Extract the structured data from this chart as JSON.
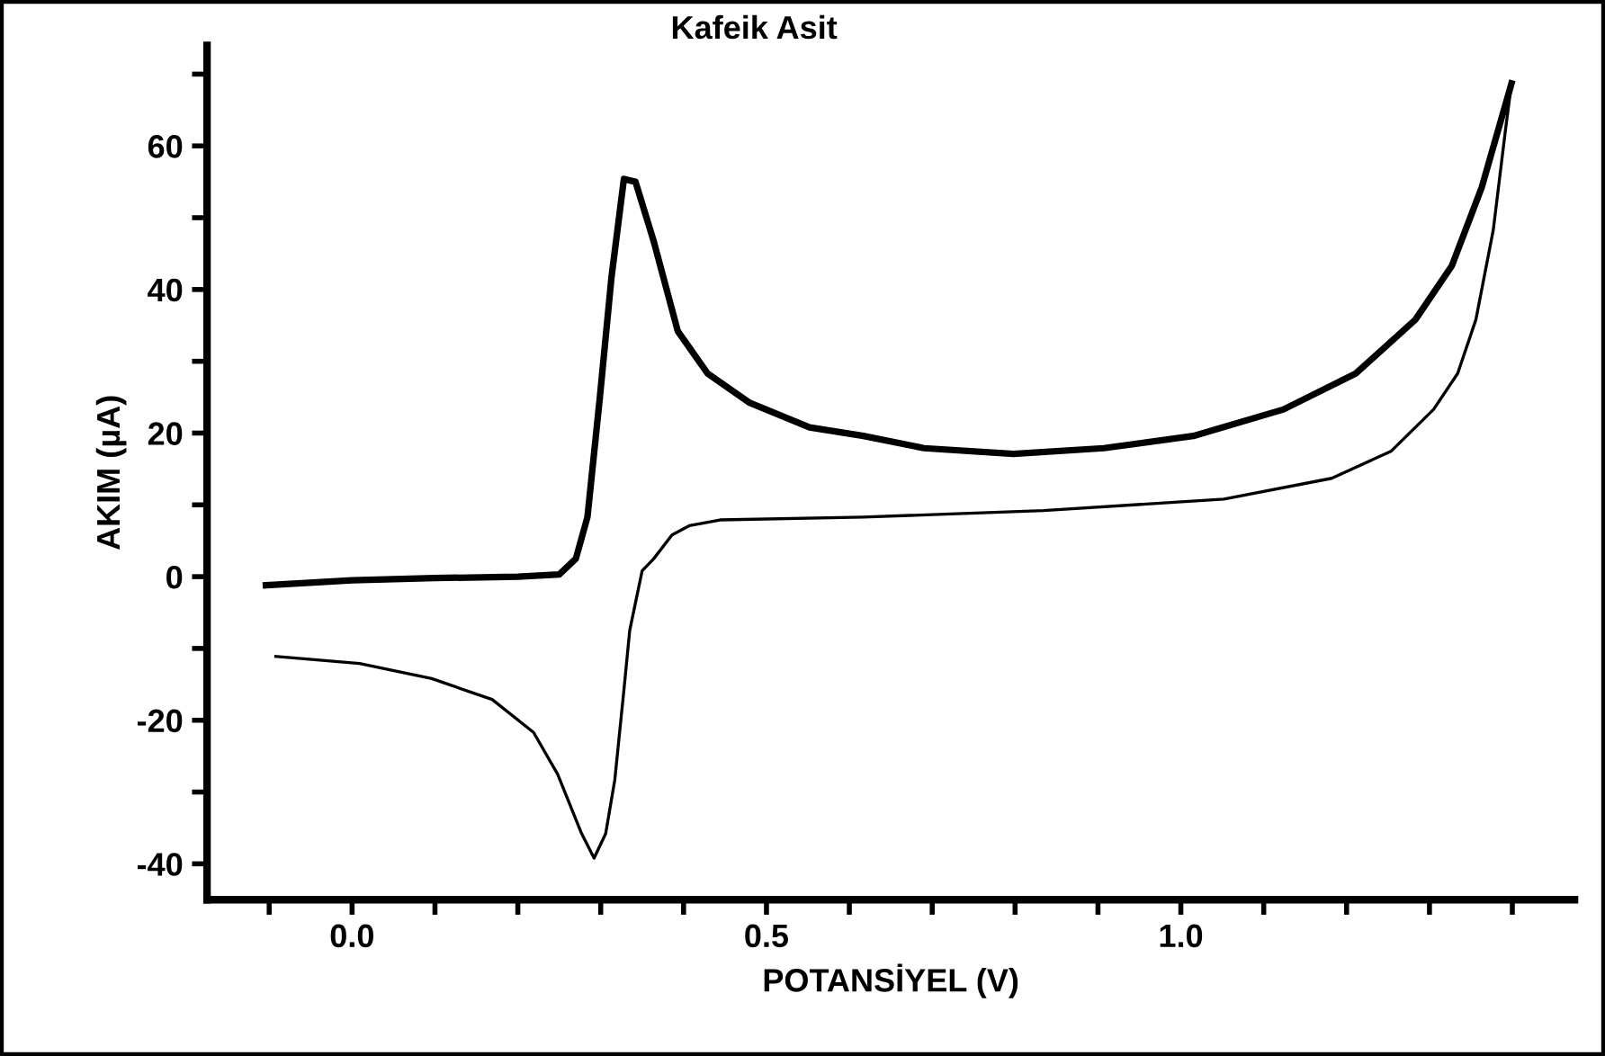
{
  "chart_data": {
    "type": "line",
    "title": "Kafeik Asit",
    "xlabel": "POTANSİYEL (V)",
    "ylabel": "AKIM (µA)",
    "xlim": [
      -0.175,
      1.475
    ],
    "ylim": [
      -45,
      74
    ],
    "xticks": [
      {
        "value": -0.1,
        "label": null
      },
      {
        "value": 0.0,
        "label": "0.0"
      },
      {
        "value": 0.1,
        "label": null
      },
      {
        "value": 0.2,
        "label": null
      },
      {
        "value": 0.3,
        "label": null
      },
      {
        "value": 0.4,
        "label": null
      },
      0.5,
      {
        "value": 0.6,
        "label": null
      },
      {
        "value": 0.7,
        "label": null
      },
      {
        "value": 0.8,
        "label": null
      },
      {
        "value": 0.9,
        "label": null
      },
      {
        "value": 1.0,
        "label": "1.0"
      },
      {
        "value": 1.1,
        "label": null
      },
      {
        "value": 1.2,
        "label": null
      },
      {
        "value": 1.3,
        "label": null
      },
      {
        "value": 1.4,
        "label": null
      }
    ],
    "yticks": [
      -40,
      {
        "value": -30,
        "label": null
      },
      -20,
      {
        "value": -10,
        "label": null
      },
      0,
      {
        "value": 10,
        "label": null
      },
      20,
      {
        "value": 30,
        "label": null
      },
      40,
      {
        "value": 50,
        "label": null
      },
      60,
      {
        "value": 70,
        "label": null
      }
    ],
    "grid": false,
    "legend": false,
    "marker": "none",
    "line_style": "solid",
    "series": [
      {
        "color": "#000000",
        "x": [
          -0.104,
          0.0,
          0.1,
          0.2,
          0.25,
          0.27,
          0.284,
          0.299,
          0.313,
          0.328,
          0.342,
          0.364,
          0.393,
          0.429,
          0.48,
          0.552,
          0.617,
          0.69,
          0.798,
          0.907,
          1.015,
          1.124,
          1.211,
          1.283,
          1.327,
          1.363,
          1.399
        ],
        "values": [
          -1.2,
          -0.5,
          -0.2,
          0.0,
          0.3,
          2.5,
          8.3,
          25,
          41.7,
          55.4,
          55,
          46.7,
          34.2,
          28.3,
          24.2,
          20.8,
          19.6,
          17.9,
          17.1,
          17.9,
          19.6,
          23.3,
          28.3,
          35.8,
          43.3,
          54.2,
          68.7
        ]
      },
      {
        "color": "#000000",
        "x": [
          1.399,
          1.392,
          1.377,
          1.356,
          1.334,
          1.305,
          1.254,
          1.182,
          1.052,
          0.834,
          0.617,
          0.444,
          0.407,
          0.386,
          0.364,
          0.35,
          0.335,
          0.328,
          0.317,
          0.306,
          0.292,
          0.277,
          0.248,
          0.219,
          0.169,
          0.096,
          0.009,
          -0.092
        ],
        "values": [
          68.7,
          62.5,
          48.3,
          35.8,
          28.3,
          23.3,
          17.5,
          13.7,
          10.8,
          9.2,
          8.3,
          7.9,
          7.1,
          5.8,
          2.5,
          0.8,
          -7.5,
          -15.8,
          -28.3,
          -35.8,
          -39.2,
          -35.8,
          -27.5,
          -21.7,
          -17.1,
          -14.2,
          -12.1,
          -11.1
        ]
      }
    ]
  }
}
